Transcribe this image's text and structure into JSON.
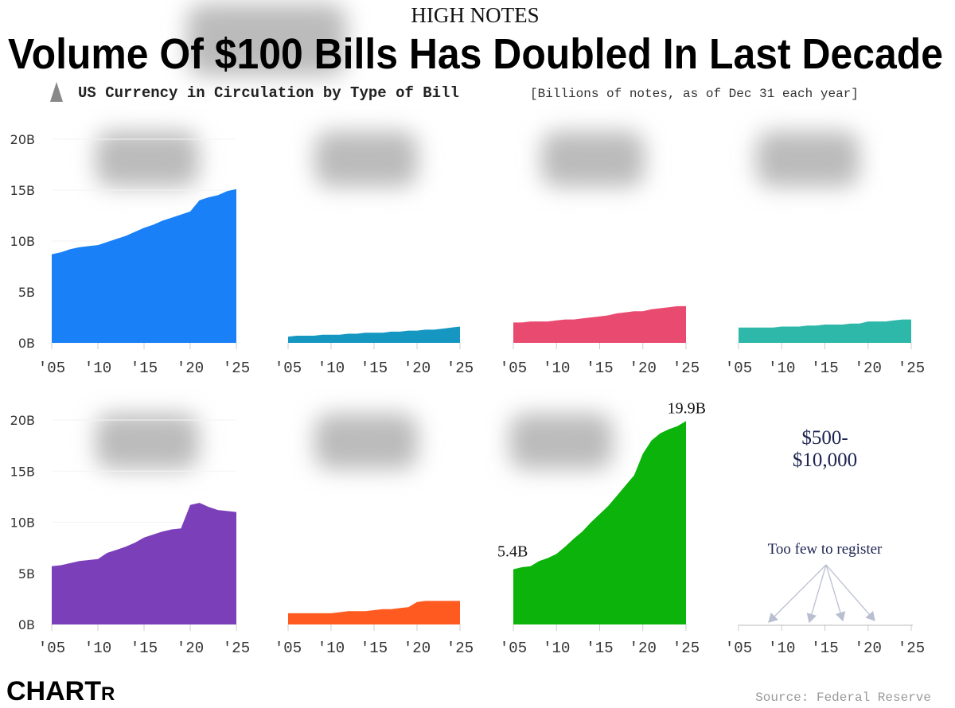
{
  "kicker": "HIGH NOTES",
  "title": "Volume Of $100 Bills Has Doubled In Last Decade",
  "subtitle": "US Currency in Circulation by Type of Bill",
  "unit_note": "[Billions of notes, as of Dec 31 each year]",
  "source": "Source: Federal Reserve",
  "logo": {
    "main": "CHART",
    "tail": "R"
  },
  "y_ticks": [
    "0B",
    "5B",
    "10B",
    "15B",
    "20B"
  ],
  "x_ticks": [
    "'05",
    "'10",
    "'15",
    "'20",
    "'25"
  ],
  "chart_data": [
    {
      "type": "area",
      "name": "$1",
      "color": "#1a80f7",
      "x": [
        2005,
        2006,
        2007,
        2008,
        2009,
        2010,
        2011,
        2012,
        2013,
        2014,
        2015,
        2016,
        2017,
        2018,
        2019,
        2020,
        2021,
        2022,
        2023,
        2024,
        2025
      ],
      "values": [
        8.7,
        8.9,
        9.2,
        9.4,
        9.5,
        9.6,
        9.9,
        10.2,
        10.5,
        10.9,
        11.3,
        11.6,
        12.0,
        12.3,
        12.6,
        12.9,
        14.0,
        14.3,
        14.5,
        14.9,
        15.1
      ],
      "ylim": [
        0,
        20
      ]
    },
    {
      "type": "area",
      "name": "$2",
      "color": "#1597c2",
      "x": [
        2005,
        2006,
        2007,
        2008,
        2009,
        2010,
        2011,
        2012,
        2013,
        2014,
        2015,
        2016,
        2017,
        2018,
        2019,
        2020,
        2021,
        2022,
        2023,
        2024,
        2025
      ],
      "values": [
        0.6,
        0.7,
        0.7,
        0.7,
        0.8,
        0.8,
        0.8,
        0.9,
        0.9,
        1.0,
        1.0,
        1.0,
        1.1,
        1.1,
        1.2,
        1.2,
        1.3,
        1.3,
        1.4,
        1.5,
        1.6
      ],
      "ylim": [
        0,
        20
      ]
    },
    {
      "type": "area",
      "name": "$5",
      "color": "#e94a70",
      "x": [
        2005,
        2006,
        2007,
        2008,
        2009,
        2010,
        2011,
        2012,
        2013,
        2014,
        2015,
        2016,
        2017,
        2018,
        2019,
        2020,
        2021,
        2022,
        2023,
        2024,
        2025
      ],
      "values": [
        2.0,
        2.0,
        2.1,
        2.1,
        2.1,
        2.2,
        2.3,
        2.3,
        2.4,
        2.5,
        2.6,
        2.7,
        2.9,
        3.0,
        3.1,
        3.1,
        3.3,
        3.4,
        3.5,
        3.6,
        3.6
      ],
      "ylim": [
        0,
        20
      ]
    },
    {
      "type": "area",
      "name": "$10",
      "color": "#2db8a9",
      "x": [
        2005,
        2006,
        2007,
        2008,
        2009,
        2010,
        2011,
        2012,
        2013,
        2014,
        2015,
        2016,
        2017,
        2018,
        2019,
        2020,
        2021,
        2022,
        2023,
        2024,
        2025
      ],
      "values": [
        1.5,
        1.5,
        1.5,
        1.5,
        1.5,
        1.6,
        1.6,
        1.6,
        1.7,
        1.7,
        1.8,
        1.8,
        1.8,
        1.9,
        1.9,
        2.1,
        2.1,
        2.1,
        2.2,
        2.3,
        2.3
      ],
      "ylim": [
        0,
        20
      ]
    },
    {
      "type": "area",
      "name": "$20",
      "color": "#7b3fba",
      "x": [
        2005,
        2006,
        2007,
        2008,
        2009,
        2010,
        2011,
        2012,
        2013,
        2014,
        2015,
        2016,
        2017,
        2018,
        2019,
        2020,
        2021,
        2022,
        2023,
        2024,
        2025
      ],
      "values": [
        5.7,
        5.8,
        6.0,
        6.2,
        6.3,
        6.4,
        7.0,
        7.3,
        7.6,
        8.0,
        8.5,
        8.8,
        9.1,
        9.3,
        9.4,
        11.7,
        11.9,
        11.5,
        11.2,
        11.1,
        11.0
      ],
      "ylim": [
        0,
        20
      ]
    },
    {
      "type": "area",
      "name": "$50",
      "color": "#ff5a1f",
      "x": [
        2005,
        2006,
        2007,
        2008,
        2009,
        2010,
        2011,
        2012,
        2013,
        2014,
        2015,
        2016,
        2017,
        2018,
        2019,
        2020,
        2021,
        2022,
        2023,
        2024,
        2025
      ],
      "values": [
        1.1,
        1.1,
        1.1,
        1.1,
        1.1,
        1.1,
        1.2,
        1.3,
        1.3,
        1.3,
        1.4,
        1.5,
        1.5,
        1.6,
        1.7,
        2.2,
        2.3,
        2.3,
        2.3,
        2.3,
        2.3
      ],
      "ylim": [
        0,
        20
      ]
    },
    {
      "type": "area",
      "name": "$100",
      "color": "#0bb30b",
      "x": [
        2005,
        2006,
        2007,
        2008,
        2009,
        2010,
        2011,
        2012,
        2013,
        2014,
        2015,
        2016,
        2017,
        2018,
        2019,
        2020,
        2021,
        2022,
        2023,
        2024,
        2025
      ],
      "values": [
        5.4,
        5.6,
        5.7,
        6.2,
        6.5,
        6.9,
        7.6,
        8.4,
        9.1,
        10.0,
        10.8,
        11.6,
        12.6,
        13.6,
        14.6,
        16.7,
        18.0,
        18.7,
        19.1,
        19.4,
        19.9
      ],
      "ylim": [
        0,
        20
      ],
      "annotations": {
        "start": "5.4B",
        "end": "19.9B"
      }
    },
    {
      "type": "area",
      "name": "$500-$10,000",
      "color": "#1c2350",
      "x": [],
      "values": [],
      "ylim": [
        0,
        20
      ],
      "label_line1": "$500-",
      "label_line2": "$10,000",
      "note": "Too few to register"
    }
  ]
}
